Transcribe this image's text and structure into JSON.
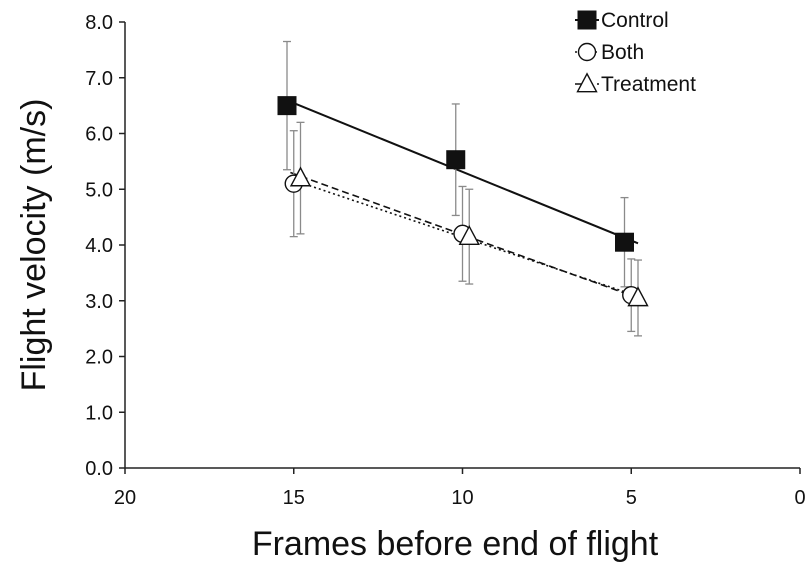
{
  "chart_data": {
    "type": "scatter",
    "xlabel": "Frames before end of flight",
    "ylabel": "Flight velocity (m/s)",
    "xlim": [
      20,
      0
    ],
    "ylim": [
      0,
      8
    ],
    "x_reversed": true,
    "x_ticks": [
      "20",
      "15",
      "10",
      "5",
      "0"
    ],
    "y_ticks": [
      "0.0",
      "1.0",
      "2.0",
      "3.0",
      "4.0",
      "5.0",
      "6.0",
      "7.0",
      "8.0"
    ],
    "legend_position": "top-right",
    "grid": false,
    "series": [
      {
        "name": "Control",
        "marker": "square-filled",
        "line": "solid",
        "x": [
          15.2,
          10.2,
          5.2
        ],
        "y": [
          6.5,
          5.53,
          4.05
        ],
        "error": [
          1.15,
          1.0,
          0.8
        ],
        "trend": {
          "x": [
            15.1,
            4.8
          ],
          "y": [
            6.57,
            4.03
          ]
        }
      },
      {
        "name": "Both",
        "marker": "circle-open",
        "line": "dotted",
        "x": [
          15.0,
          10.0,
          5.0
        ],
        "y": [
          5.1,
          4.2,
          3.1
        ],
        "error": [
          0.95,
          0.85,
          0.65
        ],
        "trend": {
          "x": [
            15.1,
            4.8
          ],
          "y": [
            5.18,
            3.08
          ]
        }
      },
      {
        "name": "Treatment",
        "marker": "triangle-open",
        "line": "dashed",
        "x": [
          14.8,
          9.8,
          4.8
        ],
        "y": [
          5.2,
          4.15,
          3.05
        ],
        "error": [
          1.0,
          0.85,
          0.68
        ],
        "trend": {
          "x": [
            15.1,
            4.8
          ],
          "y": [
            5.3,
            3.05
          ]
        }
      }
    ]
  }
}
